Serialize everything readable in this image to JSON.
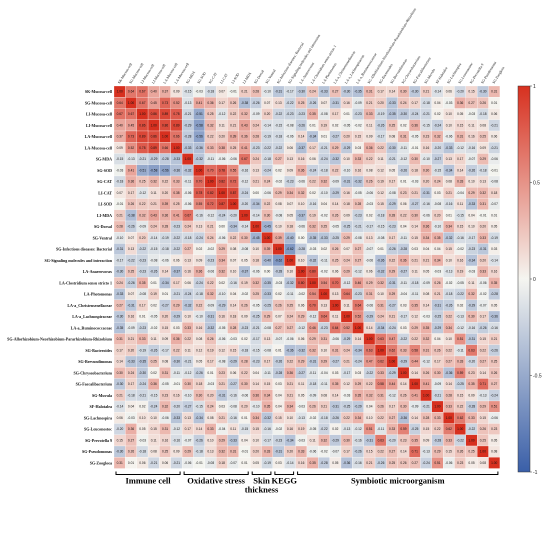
{
  "chart_data": {
    "type": "heatmap",
    "variables": [
      "SK-Mucosa-cell",
      "SG-Mucosa-cell",
      "LI-Mucosa-cell",
      "LI-Mucosa-cell",
      "LA-Mucosa-cell",
      "LA-Mucosa-cell",
      "SG-MDA",
      "SG-SOD",
      "SG-CAT",
      "LI-CAT",
      "LI-SOD",
      "LI-MDA",
      "SG-Dorsal",
      "SG-Ventral",
      "SG-Infectious diseases: Bacterial",
      "SG-Signaling molecules and interaction",
      "LA-Anaerovorax",
      "LA-Clostridium sensu stricto 1",
      "LA-Photomonas",
      "LA-a_Christensenellaceae",
      "LA-a_Lachnospiraceae",
      "LA-a_Ruminococcaceae",
      "SG-Allorhizobium-Neorhizobium-Pararhizobium-Rhizobium",
      "SG-Bacteroides",
      "SG-Brevundimonas",
      "SG-Chryseobacterium",
      "SG-Faecalibacterium",
      "SG-Muvula",
      "SF-Halotalea",
      "SG-Lachnospira",
      "SG-Leuconostoc",
      "SG-Prevotella 9",
      "SG-Pseudomonas",
      "SG-Zoogloea"
    ],
    "values": [
      [
        1.0,
        0.64,
        0.67,
        0.4,
        0.37,
        0.09,
        -0.15,
        -0.03,
        -0.18,
        0.07,
        -0.01,
        0.21,
        0.28,
        -0.1,
        -0.31,
        -0.17,
        -0.3,
        0.24,
        -0.33,
        0.27,
        -0.3,
        -0.35,
        0.31,
        0.17,
        0.14,
        0.3,
        -0.3,
        0.21,
        -0.14,
        0.06,
        -0.2,
        0.15,
        -0.3,
        0.31
      ],
      [
        0.64,
        1.0,
        0.67,
        0.45,
        0.73,
        0.52,
        -0.13,
        0.41,
        0.36,
        0.17,
        0.26,
        -0.38,
        -0.26,
        0.07,
        0.13,
        -0.22,
        0.25,
        -0.26,
        0.07,
        -0.31,
        0.16,
        -0.09,
        0.21,
        0.2,
        -0.33,
        0.24,
        0.17,
        -0.18,
        0.04,
        -0.03,
        0.36,
        0.27,
        0.26,
        0.01
      ],
      [
        0.67,
        0.67,
        1.0,
        0.86,
        0.89,
        0.78,
        -0.21,
        -0.51,
        0.25,
        -0.12,
        0.22,
        0.32,
        -0.09,
        0.2,
        -0.22,
        -0.23,
        -0.23,
        0.35,
        -0.08,
        0.17,
        0.01,
        -0.23,
        0.33,
        -0.19,
        -0.35,
        -0.3,
        -0.24,
        -0.21,
        0.02,
        0.1,
        0.05,
        -0.03,
        -0.18,
        0.06
      ],
      [
        0.4,
        0.45,
        0.86,
        1.0,
        0.86,
        0.89,
        -0.29,
        -0.58,
        0.32,
        0.11,
        0.21,
        0.43,
        0.24,
        -0.14,
        -0.15,
        -0.08,
        -0.26,
        0.01,
        0.19,
        0.02,
        -0.05,
        -0.02,
        0.11,
        -0.26,
        0.25,
        0.02,
        0.36,
        -0.15,
        -0.24,
        0.1,
        0.15,
        0.11,
        0.08,
        -0.21
      ],
      [
        0.37,
        0.73,
        0.89,
        0.86,
        1.0,
        0.66,
        -0.28,
        -0.56,
        0.22,
        0.2,
        0.39,
        0.36,
        0.28,
        -0.19,
        -0.18,
        -0.06,
        0.14,
        -0.34,
        0.01,
        -0.27,
        0.2,
        0.15,
        0.09,
        -0.17,
        0.08,
        0.31,
        -0.05,
        0.23,
        0.32,
        -0.06,
        0.31,
        0.16,
        0.25,
        0.06
      ],
      [
        0.09,
        0.52,
        0.78,
        0.89,
        0.66,
        1.0,
        -0.33,
        -0.36,
        0.33,
        0.38,
        0.25,
        0.41,
        -0.23,
        -0.22,
        -0.22,
        0.06,
        -0.37,
        0.17,
        -0.21,
        0.29,
        -0.29,
        0.03,
        0.36,
        0.22,
        -0.3,
        -0.11,
        -0.01,
        0.16,
        -0.2,
        -0.33,
        -0.12,
        -0.16,
        0.09,
        -0.21
      ],
      [
        -0.15,
        -0.13,
        -0.21,
        -0.29,
        -0.28,
        -0.33,
        1.0,
        -0.32,
        -0.11,
        -0.06,
        -0.06,
        0.67,
        0.24,
        -0.18,
        0.27,
        0.13,
        0.16,
        0.06,
        -0.24,
        -0.32,
        0.1,
        0.33,
        0.22,
        0.11,
        -0.21,
        -0.12,
        0.3,
        -0.1,
        -0.27,
        0.13,
        0.17,
        -0.07,
        0.29,
        -0.06
      ],
      [
        -0.03,
        0.41,
        -0.51,
        -0.58,
        -0.56,
        -0.36,
        -0.32,
        1.0,
        0.7,
        0.78,
        0.55,
        -0.16,
        0.13,
        -0.24,
        0.02,
        0.09,
        0.36,
        -0.24,
        -0.18,
        0.22,
        -0.1,
        0.16,
        0.08,
        0.12,
        0.05,
        -0.26,
        0.18,
        0.3,
        -0.15,
        -0.34,
        0.14,
        -0.26,
        -0.18,
        -0.01
      ],
      [
        -0.18,
        0.36,
        0.25,
        0.32,
        0.22,
        0.33,
        -0.11,
        0.7,
        1.0,
        0.82,
        0.72,
        -0.12,
        0.21,
        0.24,
        -0.02,
        -0.23,
        -0.06,
        0.22,
        0.32,
        -0.09,
        -0.31,
        -0.32,
        0.26,
        0.19,
        0.17,
        0.01,
        -0.03,
        0.2,
        0.24,
        0.08,
        0.33,
        0.1,
        0.13,
        -0.08
      ],
      [
        0.07,
        0.17,
        -0.12,
        0.11,
        0.2,
        0.38,
        -0.06,
        0.78,
        0.82,
        1.0,
        0.87,
        -0.24,
        0.0,
        -0.06,
        0.29,
        0.34,
        0.32,
        0.02,
        -0.1,
        -0.29,
        0.16,
        -0.05,
        -0.06,
        0.12,
        -0.08,
        0.23,
        0.21,
        -0.31,
        0.03,
        0.21,
        -0.04,
        0.29,
        0.32,
        0.18
      ],
      [
        -0.01,
        0.26,
        0.22,
        0.21,
        0.39,
        0.25,
        -0.06,
        0.55,
        0.72,
        0.87,
        1.0,
        -0.2,
        -0.34,
        0.22,
        0.08,
        0.07,
        0.1,
        -0.16,
        0.04,
        0.14,
        0.18,
        0.28,
        -0.03,
        0.15,
        -0.29,
        0.06,
        -0.27,
        -0.16,
        -0.08,
        -0.16,
        0.11,
        -0.33,
        0.31,
        -0.07
      ],
      [
        0.21,
        -0.38,
        0.32,
        0.43,
        0.36,
        0.41,
        0.67,
        -0.16,
        -0.12,
        -0.24,
        -0.2,
        1.0,
        -0.14,
        0.3,
        -0.08,
        0.05,
        -0.37,
        0.19,
        -0.02,
        0.26,
        0.09,
        -0.23,
        0.02,
        -0.18,
        0.28,
        0.22,
        0.3,
        -0.06,
        0.2,
        0.01,
        -0.15,
        0.04,
        -0.01,
        0.01
      ],
      [
        0.28,
        -0.26,
        -0.09,
        0.24,
        0.28,
        -0.23,
        0.24,
        0.13,
        0.21,
        0.0,
        -0.34,
        -0.14,
        1.0,
        -0.45,
        0.1,
        0.18,
        -0.06,
        0.32,
        0.25,
        -0.05,
        -0.25,
        -0.21,
        -0.17,
        -0.15,
        -0.23,
        0.04,
        0.14,
        0.36,
        -0.1,
        0.34,
        0.15,
        0.1,
        0.2,
        0.05
      ],
      [
        -0.1,
        0.07,
        0.2,
        -0.14,
        -0.19,
        -0.22,
        -0.18,
        -0.24,
        0.24,
        -0.06,
        0.22,
        0.3,
        -0.45,
        1.0,
        0.39,
        -0.4,
        0.0,
        -0.35,
        -0.33,
        -0.25,
        0.29,
        -0.08,
        0.13,
        -0.08,
        0.17,
        -0.11,
        0.15,
        0.34,
        0.35,
        -0.32,
        -0.16,
        -0.17,
        0.33,
        -0.19
      ],
      [
        -0.31,
        0.13,
        -0.22,
        -0.15,
        -0.18,
        -0.22,
        0.27,
        0.02,
        -0.02,
        0.29,
        0.08,
        -0.08,
        0.1,
        0.39,
        1.0,
        -0.62,
        -0.28,
        -0.03,
        0.02,
        0.26,
        0.07,
        0.27,
        -0.07,
        0.01,
        -0.26,
        -0.28,
        0.03,
        0.04,
        0.04,
        0.15,
        -0.02,
        -0.23,
        -0.31,
        0.03
      ],
      [
        -0.17,
        -0.22,
        -0.23,
        -0.08,
        -0.06,
        0.06,
        0.13,
        0.09,
        -0.23,
        0.34,
        0.07,
        0.05,
        0.18,
        -0.4,
        -0.62,
        1.0,
        0.1,
        -0.32,
        -0.11,
        0.25,
        0.24,
        0.27,
        -0.06,
        -0.36,
        0.22,
        0.36,
        0.21,
        0.21,
        0.34,
        0.1,
        0.16,
        -0.34,
        0.2,
        -0.14
      ],
      [
        -0.3,
        0.25,
        -0.23,
        -0.26,
        0.14,
        -0.37,
        0.16,
        0.36,
        -0.06,
        0.32,
        0.1,
        -0.37,
        -0.06,
        0.0,
        -0.28,
        0.1,
        1.0,
        0.8,
        -0.02,
        0.06,
        0.29,
        -0.12,
        0.06,
        -0.32,
        0.29,
        -0.27,
        0.11,
        0.05,
        -0.03,
        -0.13,
        0.19,
        -0.03,
        0.33,
        0.16
      ],
      [
        0.24,
        -0.26,
        0.35,
        0.01,
        -0.34,
        0.17,
        0.06,
        -0.24,
        0.22,
        0.02,
        -0.16,
        0.19,
        0.32,
        -0.35,
        -0.03,
        -0.32,
        0.8,
        1.0,
        0.54,
        0.7,
        -0.12,
        0.46,
        0.29,
        0.32,
        -0.31,
        -0.11,
        -0.18,
        -0.09,
        0.26,
        -0.02,
        -0.05,
        0.11,
        -0.06,
        0.35
      ],
      [
        -0.33,
        0.07,
        -0.08,
        0.19,
        0.01,
        -0.21,
        -0.24,
        -0.18,
        0.32,
        -0.1,
        0.04,
        -0.02,
        0.25,
        -0.33,
        0.02,
        -0.11,
        -0.02,
        0.54,
        1.0,
        0.13,
        0.64,
        -0.23,
        0.31,
        0.1,
        0.29,
        -0.04,
        -0.11,
        0.08,
        0.21,
        -0.18,
        -0.22,
        0.32,
        -0.02,
        -0.28
      ],
      [
        0.27,
        -0.31,
        0.17,
        0.02,
        -0.27,
        0.29,
        -0.32,
        0.22,
        -0.09,
        -0.29,
        0.14,
        0.26,
        -0.05,
        -0.25,
        0.26,
        0.25,
        0.06,
        0.7,
        0.13,
        1.0,
        0.11,
        0.64,
        -0.06,
        0.31,
        -0.27,
        0.03,
        0.35,
        0.14,
        -0.31,
        -0.26,
        0.02,
        -0.29,
        -0.07,
        0.05
      ],
      [
        -0.3,
        0.16,
        0.01,
        -0.05,
        0.2,
        -0.29,
        0.1,
        -0.1,
        -0.31,
        0.16,
        0.18,
        0.09,
        -0.25,
        0.29,
        0.07,
        0.24,
        0.29,
        -0.12,
        0.64,
        0.11,
        1.0,
        0.52,
        -0.29,
        0.24,
        0.21,
        -0.17,
        0.12,
        -0.03,
        -0.25,
        0.22,
        -0.13,
        0.3,
        0.17,
        -0.36
      ],
      [
        -0.35,
        -0.09,
        -0.23,
        -0.02,
        0.15,
        0.03,
        0.33,
        0.16,
        -0.32,
        -0.05,
        0.28,
        -0.23,
        -0.21,
        -0.08,
        0.27,
        0.27,
        -0.12,
        0.46,
        -0.23,
        0.64,
        0.52,
        1.0,
        0.14,
        -0.34,
        -0.24,
        0.03,
        0.29,
        0.35,
        -0.29,
        0.34,
        -0.12,
        -0.16,
        -0.26,
        -0.16
      ],
      [
        0.31,
        0.21,
        0.33,
        0.11,
        0.09,
        0.36,
        0.22,
        0.08,
        0.26,
        -0.06,
        -0.03,
        0.02,
        -0.17,
        0.13,
        -0.07,
        -0.06,
        0.06,
        0.29,
        0.31,
        -0.06,
        -0.29,
        0.14,
        1.0,
        0.63,
        0.47,
        -0.22,
        0.22,
        0.32,
        0.04,
        0.1,
        0.51,
        -0.31,
        0.15,
        0.21
      ],
      [
        0.17,
        0.2,
        -0.19,
        -0.26,
        -0.17,
        0.22,
        0.11,
        0.12,
        0.19,
        0.12,
        0.15,
        -0.18,
        -0.15,
        -0.08,
        0.01,
        -0.36,
        -0.32,
        0.32,
        0.1,
        0.31,
        0.24,
        -0.34,
        0.63,
        1.0,
        0.62,
        0.33,
        0.58,
        0.31,
        0.26,
        0.22,
        -0.11,
        0.63,
        0.22,
        -0.26
      ],
      [
        0.14,
        -0.33,
        -0.35,
        0.25,
        0.08,
        -0.3,
        -0.21,
        0.05,
        0.17,
        -0.08,
        -0.29,
        0.28,
        -0.23,
        0.17,
        -0.26,
        0.22,
        0.29,
        -0.31,
        0.29,
        -0.27,
        0.21,
        -0.24,
        0.47,
        0.62,
        1.0,
        -0.29,
        0.44,
        -0.12,
        0.17,
        0.27,
        0.33,
        -0.2,
        0.27,
        0.25
      ],
      [
        0.3,
        0.24,
        -0.3,
        0.02,
        0.31,
        -0.11,
        -0.12,
        -0.26,
        0.01,
        0.23,
        0.06,
        0.22,
        0.04,
        -0.11,
        -0.28,
        0.36,
        -0.27,
        -0.11,
        -0.04,
        0.03,
        -0.17,
        0.03,
        -0.22,
        0.33,
        -0.29,
        1.0,
        0.14,
        0.26,
        0.3,
        -0.36,
        0.59,
        0.23,
        0.14,
        0.26
      ],
      [
        -0.3,
        0.17,
        -0.24,
        0.36,
        -0.05,
        -0.01,
        0.3,
        0.18,
        -0.03,
        0.21,
        -0.27,
        0.3,
        0.14,
        0.15,
        0.03,
        0.21,
        0.11,
        -0.18,
        -0.11,
        0.35,
        0.12,
        0.29,
        0.22,
        0.58,
        0.44,
        0.14,
        1.0,
        0.41,
        -0.09,
        0.14,
        -0.25,
        0.35,
        0.71,
        0.27
      ],
      [
        0.21,
        -0.18,
        -0.21,
        -0.15,
        0.23,
        0.16,
        -0.1,
        0.3,
        0.2,
        -0.31,
        -0.16,
        -0.06,
        0.36,
        0.34,
        0.04,
        0.21,
        0.05,
        -0.09,
        0.08,
        0.14,
        -0.03,
        0.35,
        0.32,
        0.31,
        -0.12,
        0.26,
        0.41,
        1.0,
        -0.21,
        0.28,
        0.15,
        0.09,
        -0.13,
        -0.24
      ],
      [
        -0.14,
        0.04,
        0.02,
        -0.24,
        0.32,
        -0.2,
        -0.27,
        -0.15,
        0.24,
        0.03,
        -0.08,
        0.2,
        -0.1,
        0.35,
        0.04,
        0.34,
        -0.03,
        0.26,
        0.21,
        -0.31,
        -0.25,
        -0.29,
        0.04,
        0.26,
        0.17,
        0.3,
        -0.09,
        -0.21,
        1.0,
        0.33,
        0.22,
        -0.28,
        0.29,
        0.51
      ],
      [
        0.06,
        -0.03,
        0.1,
        0.1,
        -0.06,
        -0.33,
        0.13,
        -0.34,
        0.08,
        0.21,
        -0.16,
        0.01,
        0.34,
        -0.32,
        0.15,
        0.1,
        -0.13,
        -0.02,
        -0.18,
        -0.26,
        0.22,
        0.34,
        0.1,
        0.22,
        0.27,
        -0.36,
        0.14,
        0.28,
        0.33,
        1.0,
        0.62,
        0.33,
        0.15,
        -0.06
      ],
      [
        -0.2,
        0.36,
        0.05,
        0.15,
        0.31,
        -0.12,
        0.17,
        0.14,
        0.33,
        -0.04,
        0.11,
        -0.15,
        0.15,
        -0.16,
        -0.02,
        0.16,
        0.19,
        -0.05,
        -0.22,
        0.02,
        -0.13,
        -0.12,
        0.51,
        -0.11,
        0.33,
        0.59,
        -0.25,
        0.15,
        0.22,
        0.62,
        1.0,
        -0.22,
        0.26,
        0.23
      ],
      [
        0.15,
        0.27,
        -0.03,
        0.11,
        0.16,
        -0.16,
        -0.07,
        -0.26,
        0.1,
        0.29,
        -0.33,
        0.04,
        0.1,
        -0.17,
        -0.23,
        -0.34,
        -0.03,
        0.11,
        0.32,
        -0.29,
        0.3,
        -0.16,
        -0.31,
        0.63,
        -0.2,
        0.23,
        0.35,
        0.09,
        -0.28,
        0.33,
        -0.22,
        1.0,
        0.25,
        0.05
      ],
      [
        -0.3,
        0.26,
        -0.18,
        0.08,
        0.25,
        0.09,
        0.29,
        -0.18,
        0.13,
        0.32,
        0.31,
        -0.01,
        0.2,
        0.33,
        -0.31,
        0.2,
        0.33,
        -0.06,
        -0.02,
        -0.07,
        0.17,
        -0.26,
        0.15,
        0.22,
        0.27,
        0.14,
        0.71,
        -0.13,
        0.29,
        0.15,
        0.26,
        0.25,
        1.0,
        0.08
      ],
      [
        0.31,
        0.01,
        0.06,
        -0.21,
        0.06,
        -0.21,
        -0.06,
        -0.01,
        -0.08,
        0.18,
        -0.07,
        0.01,
        0.05,
        -0.19,
        0.03,
        -0.14,
        0.16,
        0.35,
        -0.28,
        0.05,
        -0.36,
        -0.16,
        0.21,
        -0.26,
        0.25,
        0.26,
        0.27,
        -0.24,
        0.51,
        -0.06,
        0.23,
        0.05,
        0.08,
        1.0
      ]
    ],
    "colorbar": {
      "min": -1,
      "max": 1,
      "ticks": [
        "1",
        "0.5",
        "0",
        "-0.5",
        "-1"
      ],
      "colors": {
        "neg": "#3a5fa8",
        "mid": "#f5f5f0",
        "pos": "#d7301f"
      }
    },
    "groups": [
      {
        "label": "Immune cell",
        "from": 0,
        "to": 5
      },
      {
        "label": "Oxidative stress",
        "from": 6,
        "to": 11
      },
      {
        "label": "Skin thickness",
        "from": 12,
        "to": 13
      },
      {
        "label": "KEGG",
        "from": 14,
        "to": 15
      },
      {
        "label": "Symbiotic microorganism",
        "from": 16,
        "to": 33
      }
    ]
  }
}
